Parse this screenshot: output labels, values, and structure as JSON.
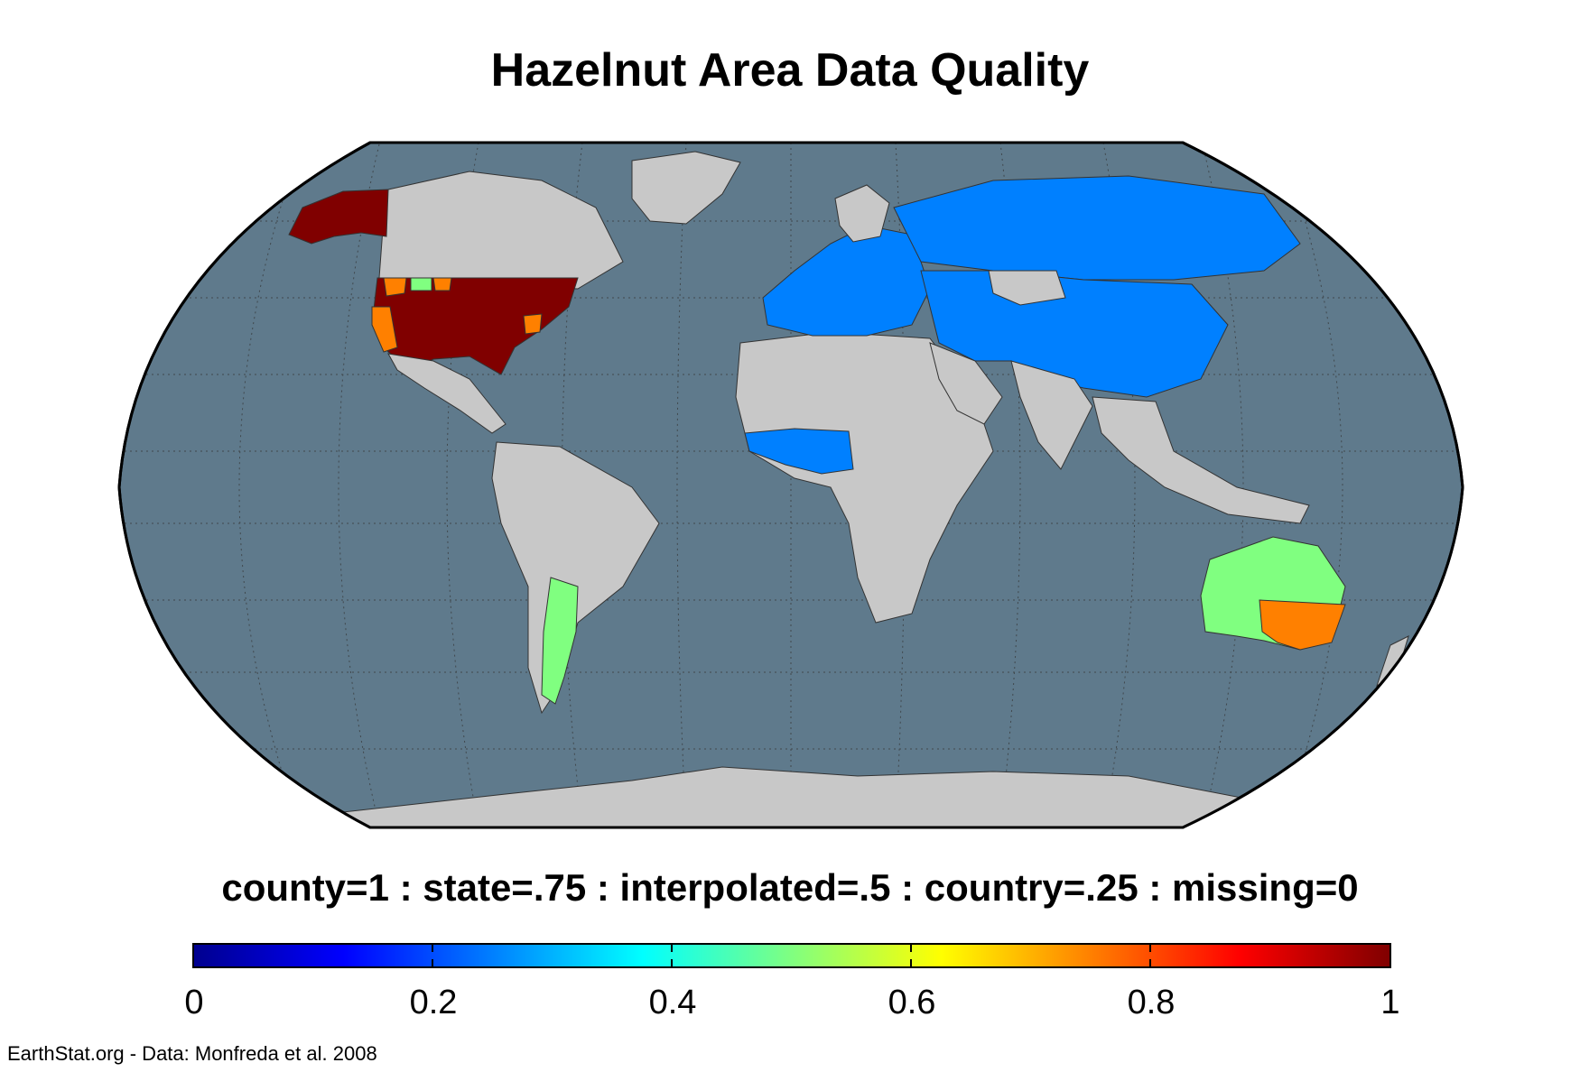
{
  "title": "Hazelnut Area Data Quality",
  "legend_caption": "county=1 : state=.75 : interpolated=.5 : country=.25 : missing=0",
  "colorbar": {
    "min": 0,
    "max": 1,
    "ticks": [
      "0",
      "0.2",
      "0.4",
      "0.6",
      "0.8",
      "1"
    ],
    "colormap": "jet"
  },
  "credit": "EarthStat.org - Data: Monfreda et al. 2008",
  "map": {
    "projection": "Robinson",
    "ocean_color": "#5f7a8c",
    "missing_color": "#c8c8c8",
    "regions": [
      {
        "name": "Alaska",
        "quality": 1,
        "color": "#800000"
      },
      {
        "name": "United States",
        "quality": 1,
        "color": "#800000"
      },
      {
        "name": "United States (some states)",
        "quality": 0.75,
        "color": "#ff8000"
      },
      {
        "name": "Montana",
        "quality": 0.5,
        "color": "#80ff80"
      },
      {
        "name": "Europe",
        "quality": 0.25,
        "color": "#0080ff"
      },
      {
        "name": "Russia",
        "quality": 0.25,
        "color": "#0080ff"
      },
      {
        "name": "Central Asia",
        "quality": 0.25,
        "color": "#0080ff"
      },
      {
        "name": "China",
        "quality": 0.25,
        "color": "#0080ff"
      },
      {
        "name": "Turkey",
        "quality": 0.25,
        "color": "#0080ff"
      },
      {
        "name": "Iran",
        "quality": 0.25,
        "color": "#0080ff"
      },
      {
        "name": "West Africa",
        "quality": 0.25,
        "color": "#0080ff"
      },
      {
        "name": "Argentina",
        "quality": 0.5,
        "color": "#80ff80"
      },
      {
        "name": "Australia",
        "quality": 0.5,
        "color": "#80ff80"
      },
      {
        "name": "Southeast Australia",
        "quality": 0.75,
        "color": "#ff8000"
      }
    ]
  }
}
